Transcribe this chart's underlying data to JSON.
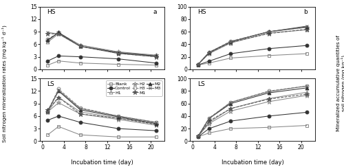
{
  "x": [
    1,
    3,
    7,
    14,
    21
  ],
  "hs_rate": {
    "Blank": [
      1.0,
      2.0,
      1.5,
      1.2,
      1.0
    ],
    "Control": [
      2.0,
      3.2,
      3.0,
      2.5,
      1.5
    ],
    "H1": [
      6.5,
      8.5,
      5.5,
      4.0,
      3.2
    ],
    "H2": [
      6.8,
      8.8,
      5.8,
      4.2,
      3.4
    ],
    "H3": [
      7.2,
      8.8,
      5.8,
      4.0,
      3.2
    ],
    "M1": [
      8.5,
      8.5,
      5.5,
      3.8,
      3.0
    ],
    "M2": [
      7.0,
      8.8,
      5.5,
      4.0,
      3.2
    ],
    "M3": [
      8.8,
      8.5,
      5.5,
      3.8,
      3.0
    ]
  },
  "ls_rate": {
    "Blank": [
      1.5,
      3.5,
      1.5,
      1.0,
      1.0
    ],
    "Control": [
      5.0,
      6.0,
      4.5,
      3.0,
      2.5
    ],
    "H1": [
      7.0,
      10.5,
      7.0,
      5.5,
      4.2
    ],
    "H2": [
      7.0,
      9.2,
      6.5,
      5.2,
      3.8
    ],
    "H3": [
      7.2,
      12.5,
      8.0,
      6.0,
      4.5
    ],
    "M1": [
      7.5,
      10.5,
      6.5,
      5.5,
      4.0
    ],
    "M2": [
      7.2,
      12.0,
      7.5,
      5.8,
      4.2
    ],
    "M3": [
      7.0,
      12.2,
      7.8,
      6.0,
      4.5
    ]
  },
  "hs_accum": {
    "Blank": [
      7,
      10,
      18,
      22,
      25
    ],
    "Control": [
      7,
      13,
      25,
      33,
      38
    ],
    "H1": [
      8,
      25,
      42,
      58,
      63
    ],
    "H2": [
      8,
      26,
      44,
      60,
      67
    ],
    "H3": [
      8,
      27,
      45,
      60,
      67
    ],
    "M1": [
      8,
      26,
      43,
      57,
      64
    ],
    "M2": [
      8,
      27,
      44,
      60,
      68
    ],
    "M3": [
      8,
      27,
      44,
      60,
      69
    ]
  },
  "ls_accum": {
    "Blank": [
      7,
      13,
      20,
      22,
      25
    ],
    "Control": [
      7,
      20,
      32,
      40,
      46
    ],
    "H1": [
      8,
      30,
      52,
      68,
      78
    ],
    "H2": [
      8,
      28,
      48,
      63,
      73
    ],
    "H3": [
      8,
      37,
      62,
      80,
      88
    ],
    "M1": [
      8,
      32,
      52,
      67,
      75
    ],
    "M2": [
      8,
      36,
      60,
      77,
      85
    ],
    "M3": [
      8,
      36,
      62,
      79,
      88
    ]
  },
  "styles": {
    "Blank": {
      "color": "#888888",
      "marker": "s",
      "linestyle": "-",
      "filled": false,
      "ms": 3.5
    },
    "Control": {
      "color": "#333333",
      "marker": "o",
      "linestyle": "-",
      "filled": true,
      "ms": 3.5
    },
    "H1": {
      "color": "#888888",
      "marker": "^",
      "linestyle": "-",
      "filled": false,
      "ms": 3.5
    },
    "H2": {
      "color": "#888888",
      "marker": "*",
      "linestyle": "-",
      "filled": false,
      "ms": 4.5
    },
    "H3": {
      "color": "#888888",
      "marker": "o",
      "linestyle": "--",
      "filled": false,
      "ms": 3.5
    },
    "M1": {
      "color": "#555555",
      "marker": "*",
      "linestyle": "--",
      "filled": true,
      "ms": 4.5
    },
    "M2": {
      "color": "#333333",
      "marker": "^",
      "linestyle": "-",
      "filled": true,
      "ms": 3.5
    },
    "M3": {
      "color": "#666666",
      "marker": "x",
      "linestyle": "-",
      "filled": false,
      "ms": 3.5
    }
  },
  "legend_order": [
    "Blank",
    "Control",
    "H1",
    "H2",
    "H3",
    "M1",
    "M2",
    "M3"
  ],
  "legend_ncol": 3,
  "ylabel_left": "Soil nitrogen mineralization rates (mg kg⁻¹ d⁻¹)",
  "ylabel_right_line1": "Mineralized accumulative quantities of",
  "ylabel_right_line2": "soil nitrogen (mg kg⁻¹)",
  "xlabel": "Incubation time (day)",
  "hs_rate_ylim": [
    0,
    15
  ],
  "ls_rate_ylim": [
    0,
    15
  ],
  "hs_accum_ylim": [
    0,
    100
  ],
  "ls_accum_ylim": [
    0,
    100
  ],
  "xticks": [
    0,
    4,
    8,
    12,
    16,
    20
  ],
  "rate_yticks": [
    0,
    3,
    6,
    9,
    12,
    15
  ],
  "accum_yticks": [
    0,
    20,
    40,
    60,
    80,
    100
  ],
  "tick_fontsize": 5.5,
  "label_fontsize": 7.0,
  "panel_label_fontsize": 6.5,
  "legend_fontsize": 4.5,
  "ylabel_fontsize": 5.2,
  "xlabel_fontsize": 6.0
}
